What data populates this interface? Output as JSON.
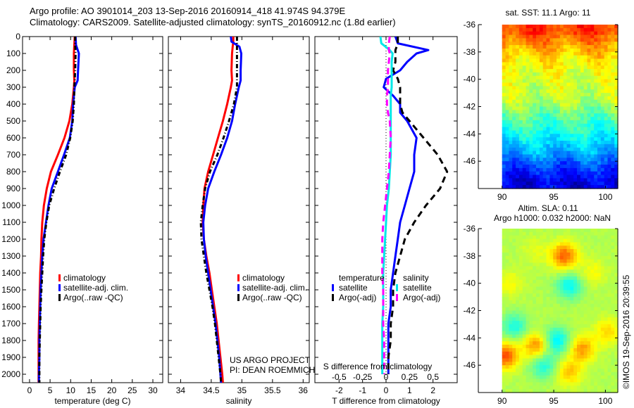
{
  "figure": {
    "title_line1": "Argo profile: AO 3901014_203 13-Sep-2016 20160914_418 41.974S 94.379E",
    "title_line2": "Climatology: CARS2009. Satellite-adjusted climatology: synTS_20160912.nc (1.8d earlier)",
    "credit": "US ARGO PROJECT",
    "pi": "PI: DEAN ROEMMICH",
    "timestamp": "©IMOS 19-Sep-2016 20:39:55"
  },
  "chart_data": [
    {
      "id": "temperature",
      "type": "line",
      "xlabel": "temperature (deg C)",
      "ylabel": "",
      "xlim": [
        -1.7,
        32.4
      ],
      "ylim": [
        2050,
        0
      ],
      "xticks": [
        0,
        5,
        10,
        15,
        20,
        25,
        30
      ],
      "yticks": [
        0,
        100,
        200,
        300,
        400,
        500,
        600,
        700,
        800,
        900,
        1000,
        1100,
        1200,
        1300,
        1400,
        1500,
        1600,
        1700,
        1800,
        1900,
        2000
      ],
      "legend": [
        "climatology",
        "satellite-adj. clim.",
        "Argo(..raw -QC)"
      ],
      "legend_position": "lower-center",
      "depth": [
        0,
        50,
        100,
        200,
        260,
        300,
        400,
        500,
        600,
        700,
        800,
        900,
        1000,
        1100,
        1200,
        1300,
        1400,
        1500,
        1600,
        1700,
        1800,
        1900,
        2000,
        2050
      ],
      "series": [
        {
          "name": "climatology",
          "color": "#ff0000",
          "style": "solid",
          "values": [
            11.0,
            10.9,
            10.8,
            10.8,
            10.9,
            10.8,
            10.4,
            9.7,
            8.5,
            6.9,
            5.2,
            4.2,
            3.5,
            3.1,
            2.9,
            2.8,
            2.6,
            2.5,
            2.4,
            2.3,
            2.2,
            2.2,
            2.2,
            2.2
          ]
        },
        {
          "name": "satellite-adj. clim.",
          "color": "#0000ff",
          "style": "solid",
          "values": [
            11.2,
            11.3,
            12.0,
            11.8,
            11.7,
            11.0,
            10.6,
            10.4,
            9.8,
            8.4,
            6.9,
            5.4,
            4.6,
            4.0,
            3.4,
            3.1,
            2.9,
            2.7,
            2.6,
            2.5,
            2.4,
            2.4,
            2.3,
            2.3
          ]
        },
        {
          "name": "Argo(..raw -QC)",
          "color": "#000000",
          "style": "dashdot",
          "values": [
            11.1,
            11.1,
            11.2,
            11.1,
            11.0,
            10.9,
            10.8,
            10.5,
            9.9,
            8.9,
            7.4,
            6.0,
            4.8,
            4.1,
            3.6,
            3.3,
            3.1,
            2.9,
            2.7,
            2.6,
            2.5,
            2.4,
            2.4,
            2.4
          ]
        }
      ]
    },
    {
      "id": "salinity",
      "type": "line",
      "xlabel": "salinity",
      "ylabel": "",
      "xlim": [
        33.8,
        36.1
      ],
      "ylim": [
        2050,
        0
      ],
      "xticks": [
        34,
        34.5,
        35,
        35.5,
        36
      ],
      "legend": [
        "climatology",
        "satellite-adj. clim.",
        "Argo(..raw -QC)"
      ],
      "legend_position": "lower-right",
      "depth": [
        0,
        30,
        60,
        100,
        200,
        260,
        300,
        400,
        500,
        600,
        700,
        800,
        900,
        1000,
        1100,
        1200,
        1300,
        1400,
        1500,
        1600,
        1700,
        1800,
        1900,
        2000,
        2050
      ],
      "series": [
        {
          "name": "climatology",
          "color": "#ff0000",
          "style": "solid",
          "values": [
            34.86,
            34.86,
            34.85,
            34.84,
            34.83,
            34.84,
            34.82,
            34.76,
            34.69,
            34.61,
            34.53,
            34.45,
            34.39,
            34.37,
            34.36,
            34.38,
            34.42,
            34.47,
            34.51,
            34.55,
            34.59,
            34.62,
            34.65,
            34.68,
            34.69
          ]
        },
        {
          "name": "satellite-adj. clim.",
          "color": "#0000ff",
          "style": "solid",
          "values": [
            34.82,
            34.83,
            34.96,
            34.99,
            34.98,
            34.98,
            34.95,
            34.89,
            34.84,
            34.76,
            34.66,
            34.55,
            34.45,
            34.4,
            34.37,
            34.38,
            34.41,
            34.45,
            34.49,
            34.53,
            34.57,
            34.6,
            34.63,
            34.65,
            34.66
          ]
        },
        {
          "name": "Argo(..raw -QC)",
          "color": "#000000",
          "style": "dashdot",
          "values": [
            34.92,
            34.92,
            34.92,
            34.92,
            34.92,
            34.92,
            34.92,
            34.87,
            34.79,
            34.7,
            34.6,
            34.48,
            34.4,
            34.36,
            34.33,
            34.34,
            34.38,
            34.42,
            34.47,
            34.52,
            34.56,
            34.59,
            34.62,
            34.65,
            34.66
          ]
        }
      ]
    },
    {
      "id": "difference",
      "type": "line",
      "xlabel": "T difference from climatology",
      "xlabel_secondary": "S difference from climatology",
      "xlim": [
        -3.03,
        3.03
      ],
      "ylim": [
        2050,
        0
      ],
      "xticks": [
        -2,
        -1,
        0,
        1,
        2
      ],
      "xticks_secondary": [
        -0.5,
        -0.25,
        0,
        0.25,
        0.5
      ],
      "xticks_secondary_labels": [
        "-0.5",
        "-0.25",
        "0",
        "0.25",
        "0.5"
      ],
      "secondary_scale": 0.25,
      "legend_groups": [
        {
          "title": "temperature",
          "items": [
            "satellite",
            "Argo(-adj)"
          ]
        },
        {
          "title": "salinity",
          "items": [
            "satellite",
            "Argo(-adj)"
          ]
        }
      ],
      "legend_position": "lower-center",
      "depth": [
        0,
        40,
        80,
        100,
        150,
        200,
        250,
        300,
        350,
        400,
        450,
        500,
        600,
        700,
        800,
        900,
        1000,
        1100,
        1200,
        1300,
        1400,
        1500,
        1600,
        1700,
        1800,
        1900,
        2000
      ],
      "series": [
        {
          "name": "temperature satellite",
          "color": "#0000ff",
          "style": "solid",
          "values": [
            0.4,
            0.5,
            1.8,
            1.3,
            0.9,
            0.6,
            0.0,
            -0.1,
            0.3,
            0.6,
            0.6,
            0.9,
            1.3,
            1.2,
            1.2,
            1.0,
            0.8,
            0.6,
            0.5,
            0.4,
            0.3,
            0.2,
            0.2,
            0.1,
            0.1,
            0.1,
            0.1
          ]
        },
        {
          "name": "temperature Argo(-adj)",
          "color": "#000000",
          "style": "dashed",
          "values": [
            0.5,
            0.5,
            0.4,
            0.4,
            0.4,
            0.3,
            0.5,
            0.6,
            0.6,
            0.6,
            0.7,
            1.0,
            1.6,
            2.2,
            2.6,
            2.3,
            1.7,
            1.2,
            0.8,
            0.6,
            0.4,
            0.3,
            0.3,
            0.2,
            0.2,
            0.1,
            0.1
          ]
        },
        {
          "name": "salinity satellite",
          "color": "#00e8e8",
          "style": "solid",
          "values": [
            -0.06,
            -0.05,
            0.04,
            0.07,
            0.06,
            0.06,
            0.06,
            0.06,
            0.05,
            0.05,
            0.05,
            0.05,
            0.05,
            0.05,
            0.04,
            0.03,
            0.01,
            0.0,
            -0.01,
            -0.02,
            -0.03,
            -0.03,
            -0.03,
            -0.04,
            -0.04,
            -0.04,
            -0.04
          ]
        },
        {
          "name": "salinity Argo(-adj)",
          "color": "#ff00ff",
          "style": "dashed",
          "values": [
            0.04,
            0.03,
            0.03,
            0.04,
            0.03,
            0.02,
            0.02,
            0.02,
            0.01,
            0.01,
            0.02,
            0.04,
            0.05,
            0.04,
            0.03,
            0.01,
            -0.01,
            -0.03,
            -0.04,
            -0.04,
            -0.04,
            -0.03,
            -0.03,
            -0.03,
            -0.02,
            -0.02,
            -0.02
          ]
        }
      ],
      "zero_line": "dotted"
    },
    {
      "id": "sst_map",
      "type": "heatmap",
      "title": "sat. SST: 11.1 Argo: 11",
      "xlim": [
        87.7,
        101.2
      ],
      "ylim": [
        -48,
        -36
      ],
      "xticks": [
        90,
        95,
        100
      ],
      "yticks": [
        -36,
        -38,
        -40,
        -42,
        -44,
        -46
      ],
      "data_lon_range": [
        90,
        101.2
      ],
      "lat_bands": [
        {
          "lat": -36.5,
          "value": 0.82
        },
        {
          "lat": -37.5,
          "value": 0.72
        },
        {
          "lat": -38.5,
          "value": 0.65
        },
        {
          "lat": -39.5,
          "value": 0.6
        },
        {
          "lat": -40.5,
          "value": 0.58
        },
        {
          "lat": -41.5,
          "value": 0.56
        },
        {
          "lat": -42.5,
          "value": 0.48
        },
        {
          "lat": -43.5,
          "value": 0.42
        },
        {
          "lat": -44.5,
          "value": 0.36
        },
        {
          "lat": -45.5,
          "value": 0.28
        },
        {
          "lat": -46.5,
          "value": 0.18
        },
        {
          "lat": -47.5,
          "value": 0.1
        }
      ]
    },
    {
      "id": "sla_map",
      "type": "heatmap",
      "title": "Altim. SLA: 0.11",
      "subtitle": "Argo h1000: 0.032 h2000: NaN",
      "xlim": [
        87.7,
        101.2
      ],
      "ylim": [
        -48,
        -36
      ],
      "xticks": [
        90,
        95,
        100
      ],
      "yticks": [
        -36,
        -38,
        -40,
        -42,
        -44,
        -46
      ],
      "data_lon_range": [
        90,
        101.2
      ],
      "blobs": [
        {
          "lon": 96.0,
          "lat": -38.0,
          "value": 0.78
        },
        {
          "lon": 90.3,
          "lat": -45.3,
          "value": 0.8
        },
        {
          "lon": 93.3,
          "lat": -44.6,
          "value": 0.74
        },
        {
          "lon": 97.8,
          "lat": -44.8,
          "value": 0.72
        },
        {
          "lon": 100.2,
          "lat": -43.5,
          "value": 0.66
        },
        {
          "lon": 90.8,
          "lat": -40.0,
          "value": 0.62
        },
        {
          "lon": 95.3,
          "lat": -44.2,
          "value": 0.36
        },
        {
          "lon": 91.2,
          "lat": -43.2,
          "value": 0.4
        },
        {
          "lon": 96.5,
          "lat": -40.2,
          "value": 0.38
        },
        {
          "lon": 94.0,
          "lat": -46.0,
          "value": 0.4
        },
        {
          "lon": 98.8,
          "lat": -39.2,
          "value": 0.62
        },
        {
          "lon": 93.2,
          "lat": -37.6,
          "value": 0.6
        },
        {
          "lon": 96.5,
          "lat": -46.5,
          "value": 0.68
        }
      ]
    }
  ]
}
